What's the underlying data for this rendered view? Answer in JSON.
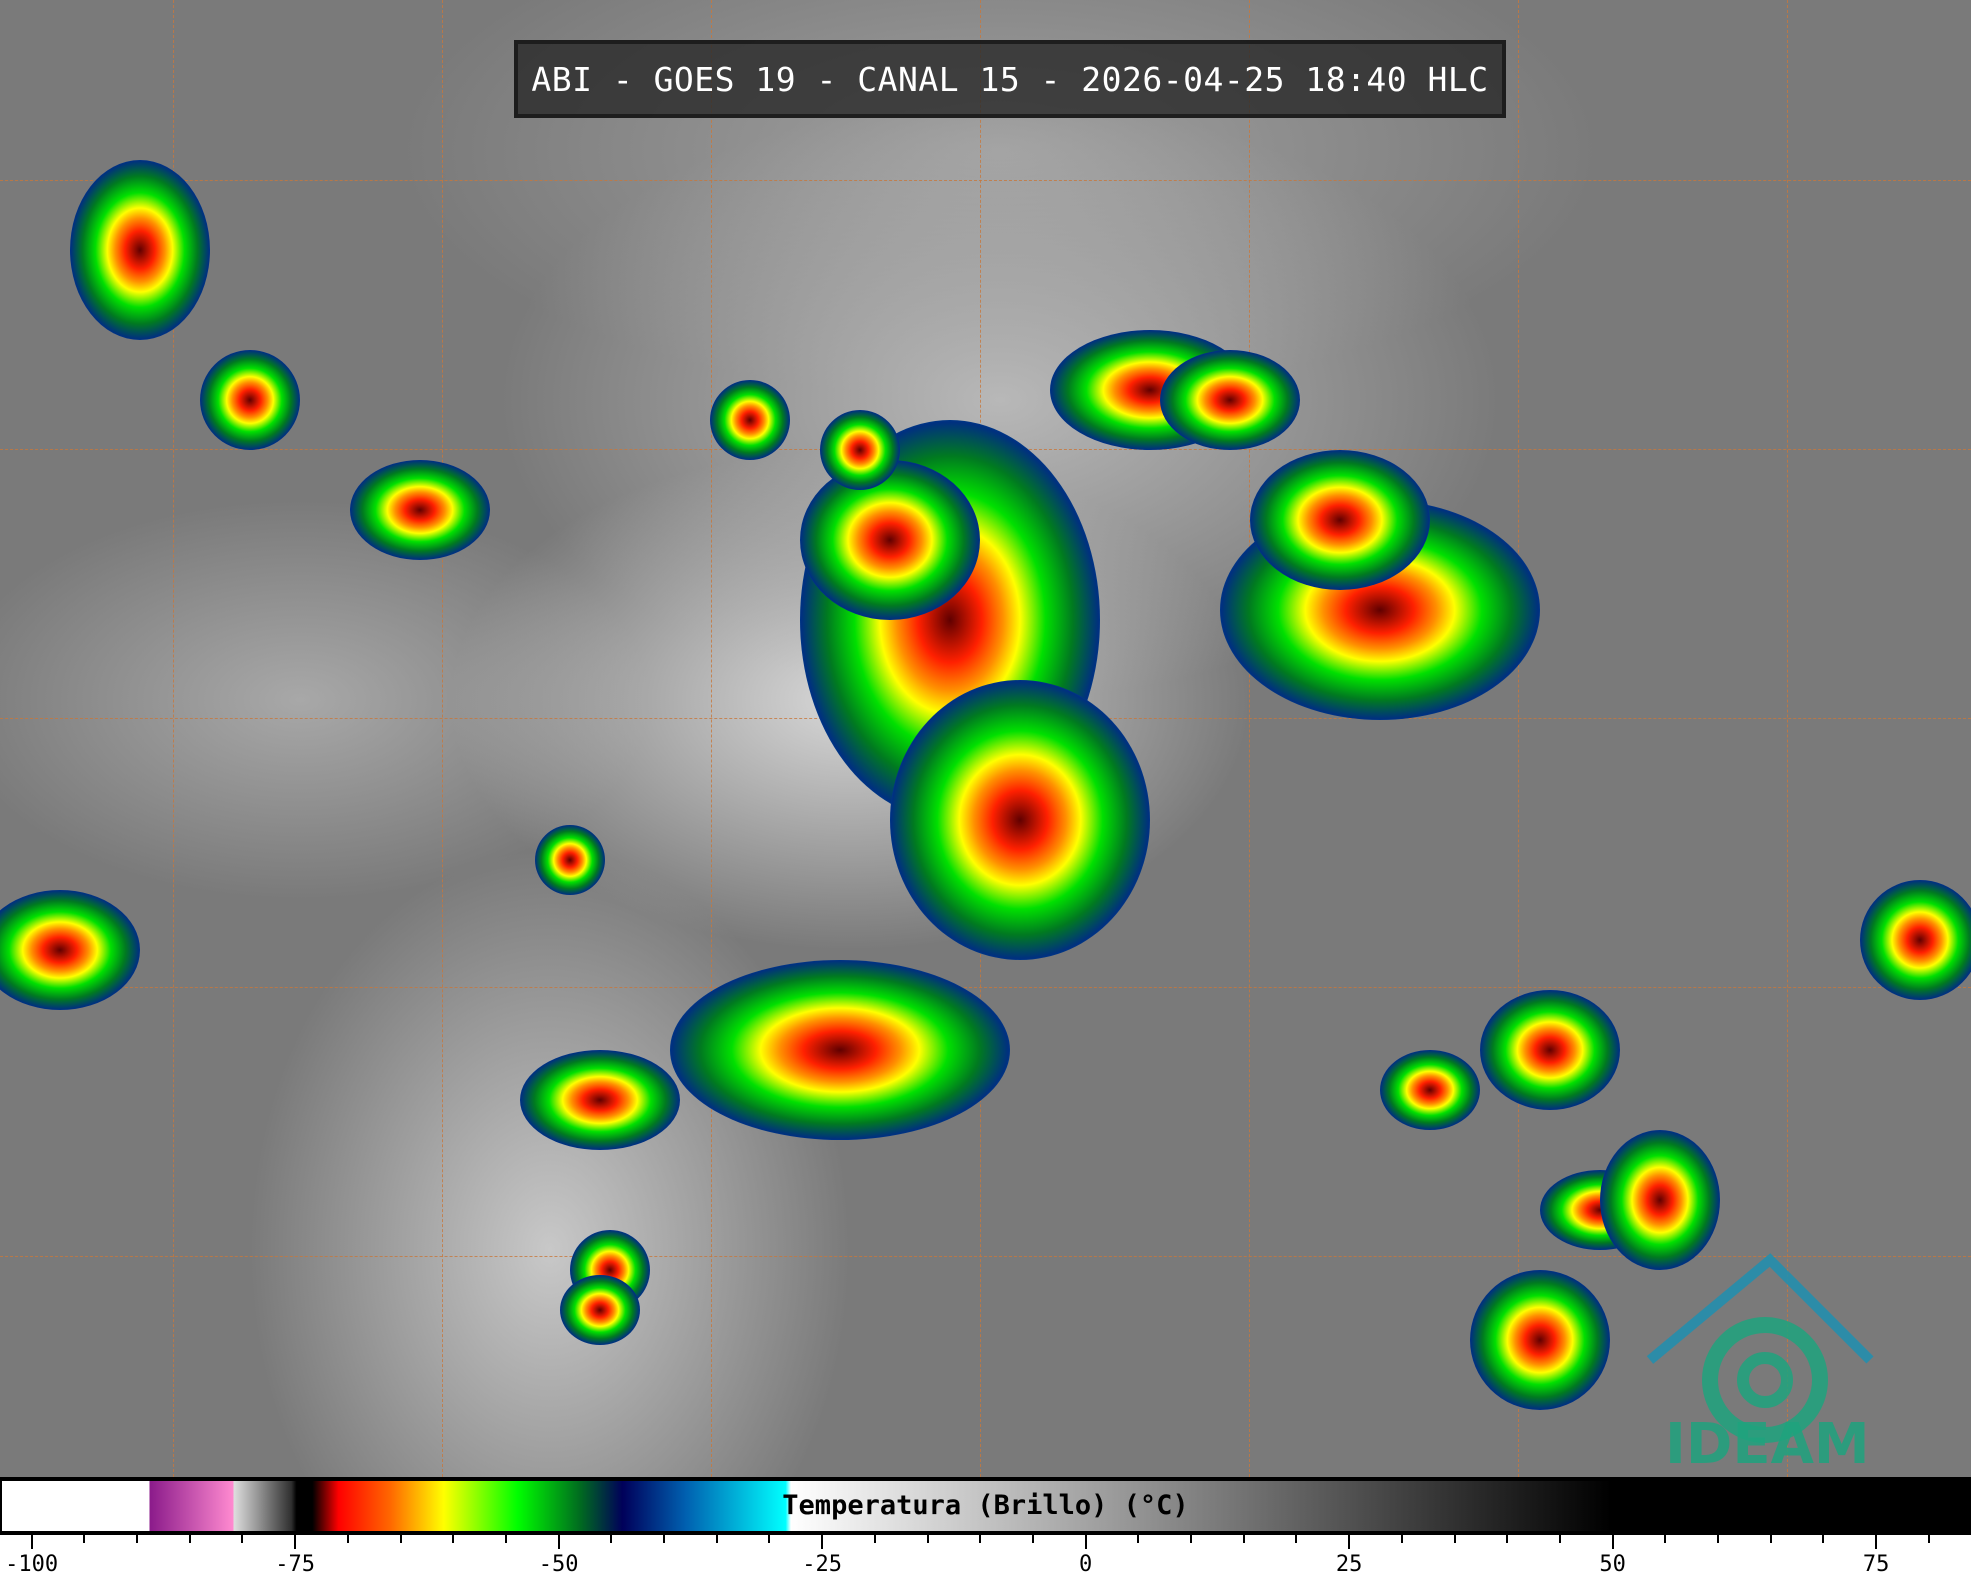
{
  "title": "ABI - GOES 19 - CANAL 15 - 2026-04-25 18:40 HLC",
  "logo": {
    "text": "IDEAM",
    "color": "#1fa37e"
  },
  "colorbar": {
    "label": "Temperatura (Brillo) (°C)",
    "range": [
      -103,
      84
    ],
    "major_ticks": [
      -100,
      -75,
      -50,
      -25,
      0,
      25,
      50,
      75
    ],
    "tick_labels": [
      "-100",
      "-75",
      "-50",
      "-25",
      "0",
      "25",
      "50",
      "75"
    ],
    "minor_tick_step": 5,
    "stops": [
      {
        "t": -103,
        "color": "#ffffff"
      },
      {
        "t": -89,
        "color": "#ffffff"
      },
      {
        "t": -89,
        "color": "#8a1a8a"
      },
      {
        "t": -81,
        "color": "#ff8ad0"
      },
      {
        "t": -81,
        "color": "#e0e0e0"
      },
      {
        "t": -75.5,
        "color": "#303030"
      },
      {
        "t": -75,
        "color": "#000000"
      },
      {
        "t": -73.5,
        "color": "#000000"
      },
      {
        "t": -71,
        "color": "#ff0000"
      },
      {
        "t": -66,
        "color": "#ff6a00"
      },
      {
        "t": -61,
        "color": "#ffff00"
      },
      {
        "t": -54,
        "color": "#00ff00"
      },
      {
        "t": -48,
        "color": "#006a20"
      },
      {
        "t": -44,
        "color": "#00005a"
      },
      {
        "t": -38,
        "color": "#0060b0"
      },
      {
        "t": -28.5,
        "color": "#00ffff"
      },
      {
        "t": -28,
        "color": "#ffffff"
      },
      {
        "t": 50,
        "color": "#000000"
      },
      {
        "t": 84,
        "color": "#000000"
      }
    ]
  }
}
